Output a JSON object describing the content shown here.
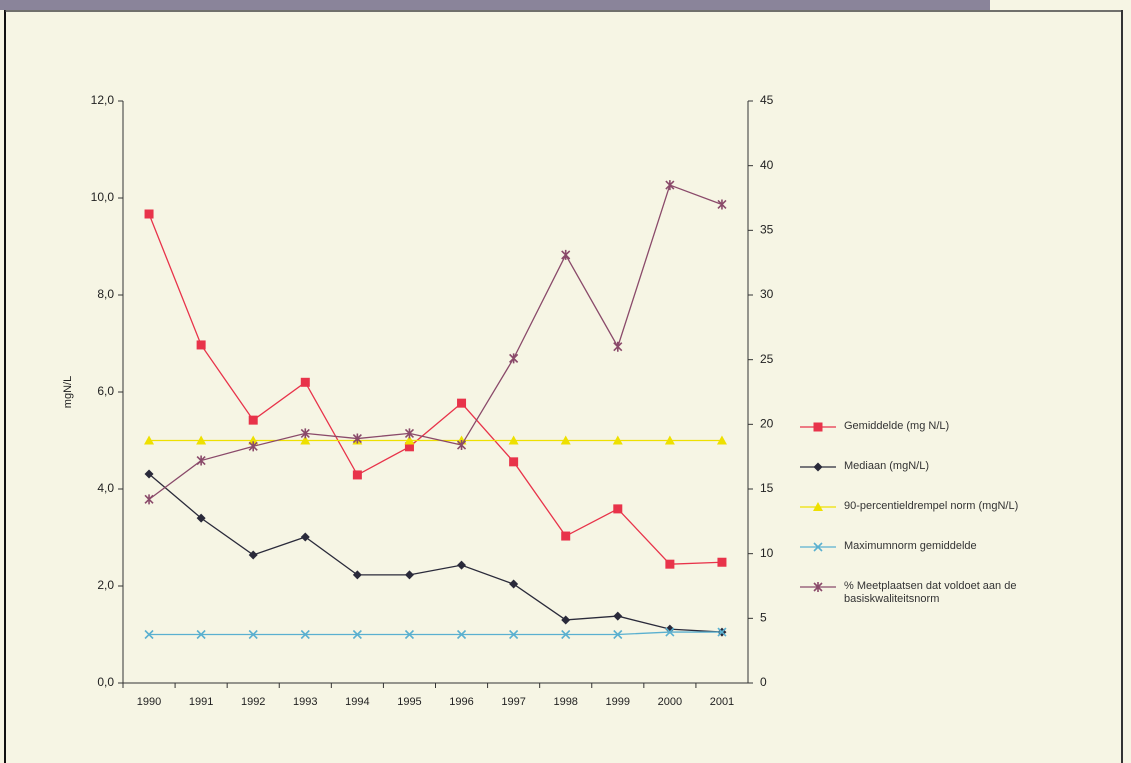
{
  "chart_data": {
    "type": "line",
    "y_label": "mgN/L",
    "categories": [
      "1990",
      "1991",
      "1992",
      "1993",
      "1994",
      "1995",
      "1996",
      "1997",
      "1998",
      "1999",
      "2000",
      "2001"
    ],
    "ylim": [
      0,
      12
    ],
    "yticks": [
      {
        "value": 0,
        "label": "0,0"
      },
      {
        "value": 2,
        "label": "2,0"
      },
      {
        "value": 4,
        "label": "4,0"
      },
      {
        "value": 6,
        "label": "6,0"
      },
      {
        "value": 8,
        "label": "8,0"
      },
      {
        "value": 10,
        "label": "10,0"
      },
      {
        "value": 12,
        "label": "12,0"
      }
    ],
    "y2lim": [
      0,
      45
    ],
    "y2ticks": [
      0,
      5,
      10,
      15,
      20,
      25,
      30,
      35,
      40,
      45
    ],
    "grid": false,
    "legend": "right",
    "series": [
      {
        "name": "Gemiddelde (mg N/L)",
        "color": "#e8334a",
        "marker": "square",
        "values": [
          9.67,
          6.97,
          5.42,
          6.2,
          4.29,
          4.87,
          5.77,
          4.56,
          3.03,
          3.59,
          2.45,
          2.49
        ]
      },
      {
        "name": "Mediaan (mgN/L)",
        "color": "#2a2a3a",
        "marker": "diamond",
        "values": [
          4.31,
          3.4,
          2.64,
          3.01,
          2.23,
          2.23,
          2.43,
          2.04,
          1.3,
          1.38,
          1.11,
          1.05
        ]
      },
      {
        "name": "90-percentieldrempel norm (mgN/L)",
        "color": "#eee000",
        "marker": "triangle",
        "values": [
          5,
          5,
          5,
          5,
          5,
          5,
          5,
          5,
          5,
          5,
          5,
          5
        ]
      },
      {
        "name": "Maximumnorm gemiddelde",
        "color": "#5ab0d0",
        "marker": "x",
        "values": [
          1,
          1,
          1,
          1,
          1,
          1,
          1,
          1,
          1,
          1,
          1.05,
          1.05
        ]
      },
      {
        "name": "% Meetplaatsen dat voldoet aan de basiskwaliteitsnorm",
        "color": "#8a4a6a",
        "marker": "star",
        "axis": "y2",
        "values": [
          14.2,
          17.2,
          18.3,
          19.3,
          18.9,
          19.3,
          18.4,
          25.1,
          33.1,
          26.0,
          38.5,
          37.0
        ]
      }
    ]
  }
}
